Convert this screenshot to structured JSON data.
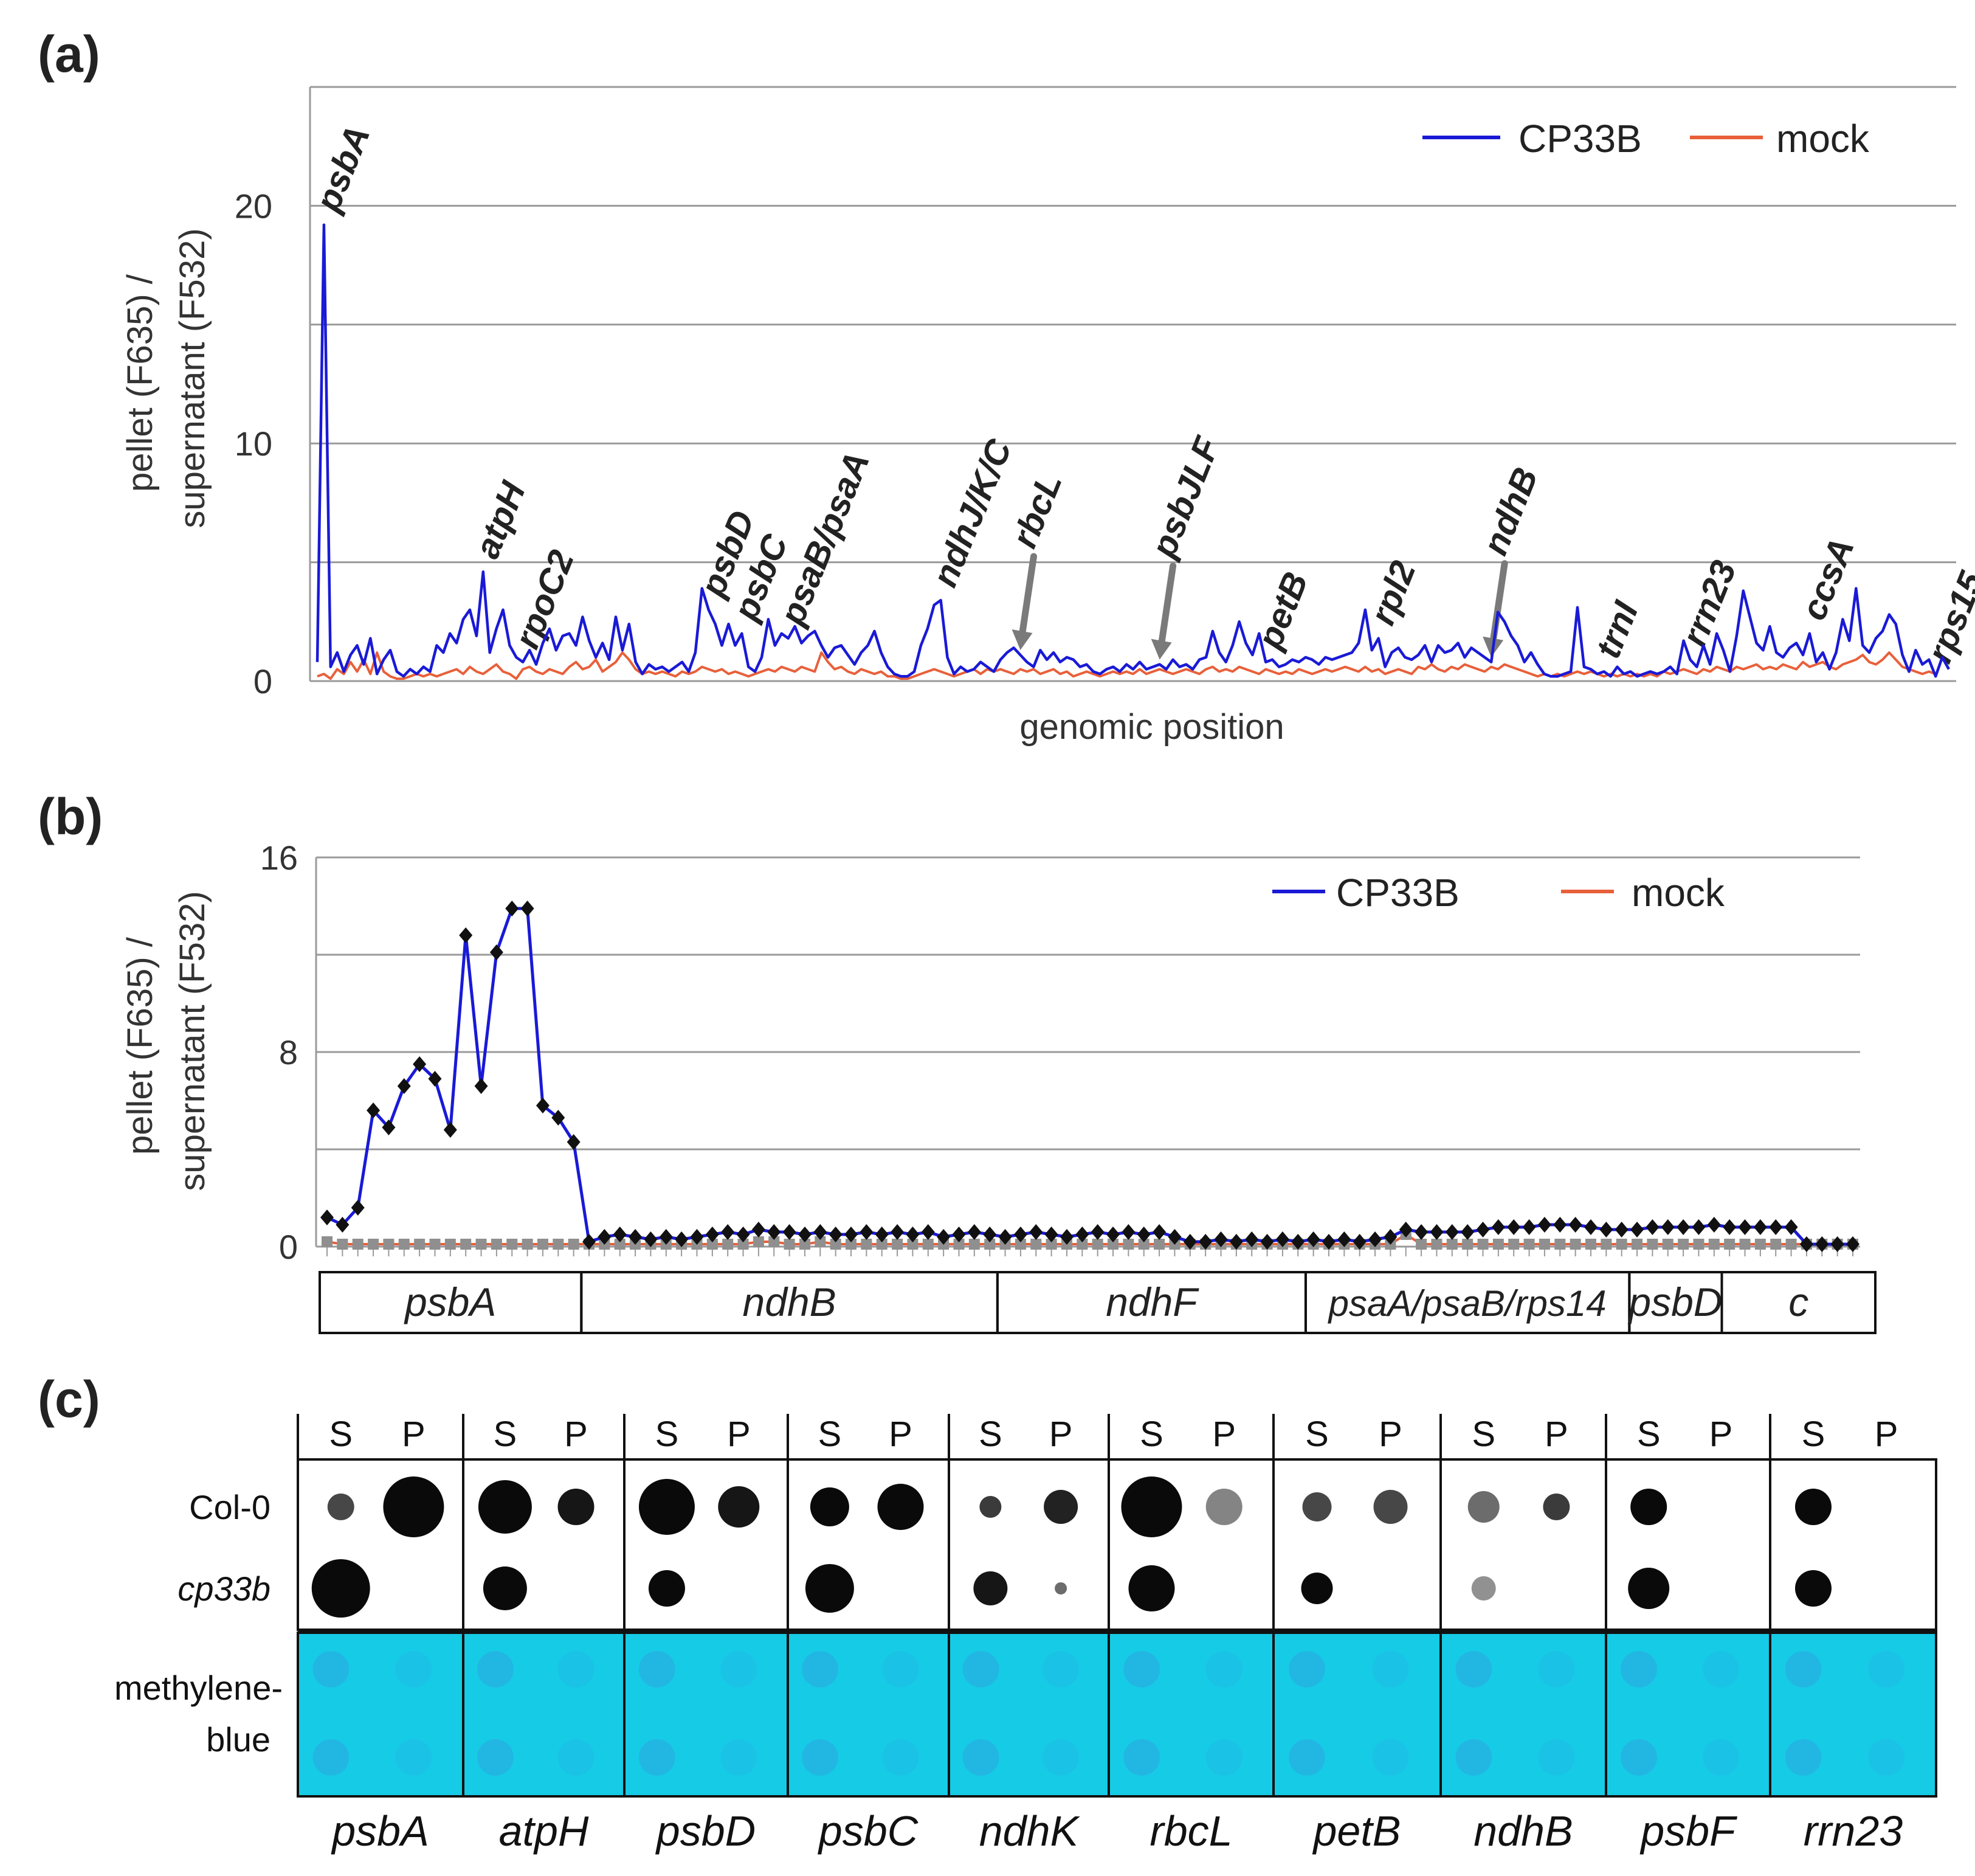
{
  "chart_data": [
    {
      "panel": "(a)",
      "type": "line",
      "xlabel": "genomic position",
      "ylabel": "pellet (F635) / supernatant (F532)",
      "ylim": [
        0,
        25
      ],
      "yticks": [
        0,
        10,
        20
      ],
      "grid": true,
      "legend": "top-right",
      "series": [
        {
          "name": "CP33B",
          "color": "#1a1ad6",
          "values": [
            0.8,
            19.2,
            0.6,
            1.2,
            0.4,
            1.1,
            1.5,
            0.7,
            1.8,
            0.3,
            0.9,
            1.3,
            0.4,
            0.2,
            0.5,
            0.3,
            0.6,
            0.4,
            1.5,
            1.2,
            2.0,
            1.6,
            2.6,
            3.0,
            1.9,
            4.6,
            1.2,
            2.2,
            3.0,
            1.5,
            1.0,
            0.8,
            1.3,
            0.7,
            1.6,
            2.2,
            1.3,
            1.9,
            2.0,
            1.5,
            2.7,
            1.7,
            1.0,
            1.6,
            0.9,
            2.7,
            1.3,
            2.4,
            0.8,
            0.3,
            0.7,
            0.5,
            0.6,
            0.4,
            0.6,
            0.8,
            0.4,
            1.2,
            3.9,
            3.0,
            2.4,
            1.5,
            2.4,
            1.5,
            2.0,
            0.6,
            0.4,
            1.0,
            2.6,
            1.5,
            2.0,
            1.8,
            2.3,
            1.6,
            1.9,
            2.1,
            1.5,
            1.0,
            1.4,
            1.5,
            1.1,
            0.7,
            1.2,
            1.5,
            2.1,
            1.2,
            0.6,
            0.3,
            0.2,
            0.2,
            0.4,
            1.5,
            2.2,
            3.2,
            3.4,
            1.0,
            0.3,
            0.6,
            0.4,
            0.5,
            0.8,
            0.6,
            0.4,
            0.9,
            1.2,
            1.4,
            1.1,
            0.8,
            0.6,
            1.3,
            0.9,
            1.2,
            0.8,
            1.0,
            0.9,
            0.6,
            0.7,
            0.4,
            0.3,
            0.5,
            0.6,
            0.4,
            0.7,
            0.5,
            0.8,
            0.5,
            0.6,
            0.7,
            0.5,
            0.9,
            0.6,
            0.7,
            0.5,
            0.9,
            1.0,
            2.1,
            1.2,
            0.8,
            1.5,
            2.5,
            1.6,
            1.1,
            2.0,
            0.8,
            0.9,
            0.6,
            0.7,
            0.9,
            0.8,
            1.0,
            0.9,
            0.7,
            1.0,
            0.9,
            1.0,
            1.1,
            1.2,
            1.6,
            3.0,
            1.3,
            1.8,
            0.6,
            1.2,
            1.4,
            1.0,
            0.9,
            1.1,
            1.5,
            0.8,
            1.5,
            1.2,
            1.3,
            1.6,
            1.0,
            1.4,
            1.2,
            1.0,
            0.8,
            2.9,
            2.5,
            1.9,
            1.5,
            0.8,
            1.2,
            0.7,
            0.3,
            0.2,
            0.2,
            0.3,
            0.4,
            3.1,
            0.6,
            0.5,
            0.3,
            0.4,
            0.2,
            0.6,
            0.3,
            0.4,
            0.2,
            0.3,
            0.4,
            0.3,
            0.4,
            0.6,
            0.3,
            1.7,
            0.9,
            0.6,
            1.5,
            0.7,
            2.0,
            1.3,
            0.4,
            1.9,
            3.8,
            2.7,
            1.6,
            1.3,
            2.3,
            1.2,
            1.0,
            1.4,
            1.6,
            1.1,
            2.0,
            0.8,
            1.2,
            0.5,
            1.2,
            2.6,
            1.7,
            3.9,
            1.5,
            1.2,
            1.8,
            2.1,
            2.8,
            2.4,
            1.1,
            0.4,
            1.3,
            0.7,
            0.9,
            0.2,
            1.0,
            0.5
          ]
        },
        {
          "name": "mock",
          "color": "#e8603a",
          "values": [
            0.2,
            0.3,
            0.1,
            0.5,
            0.3,
            0.8,
            0.4,
            0.9,
            0.3,
            1.2,
            0.4,
            0.2,
            0.1,
            0.1,
            0.2,
            0.3,
            0.2,
            0.3,
            0.2,
            0.3,
            0.4,
            0.5,
            0.3,
            0.6,
            0.4,
            0.3,
            0.5,
            0.7,
            0.4,
            0.3,
            0.1,
            0.5,
            0.6,
            0.4,
            0.3,
            0.5,
            0.4,
            0.3,
            0.6,
            0.8,
            0.5,
            0.6,
            0.9,
            0.4,
            0.6,
            0.8,
            1.2,
            0.9,
            0.5,
            0.3,
            0.4,
            0.3,
            0.4,
            0.3,
            0.2,
            0.4,
            0.3,
            0.4,
            0.6,
            0.5,
            0.4,
            0.5,
            0.3,
            0.4,
            0.3,
            0.2,
            0.3,
            0.4,
            0.5,
            0.4,
            0.6,
            0.5,
            0.4,
            0.6,
            0.5,
            0.4,
            1.2,
            0.8,
            0.5,
            0.6,
            0.4,
            0.3,
            0.5,
            0.4,
            0.3,
            0.4,
            0.2,
            0.2,
            0.1,
            0.1,
            0.2,
            0.3,
            0.4,
            0.5,
            0.4,
            0.3,
            0.2,
            0.3,
            0.4,
            0.5,
            0.3,
            0.5,
            0.4,
            0.5,
            0.4,
            0.3,
            0.5,
            0.4,
            0.5,
            0.3,
            0.4,
            0.5,
            0.3,
            0.4,
            0.2,
            0.3,
            0.4,
            0.3,
            0.2,
            0.3,
            0.4,
            0.3,
            0.4,
            0.3,
            0.5,
            0.3,
            0.4,
            0.5,
            0.4,
            0.3,
            0.4,
            0.5,
            0.4,
            0.3,
            0.5,
            0.6,
            0.4,
            0.5,
            0.4,
            0.6,
            0.5,
            0.4,
            0.3,
            0.5,
            0.4,
            0.3,
            0.4,
            0.3,
            0.5,
            0.4,
            0.3,
            0.4,
            0.5,
            0.4,
            0.5,
            0.6,
            0.5,
            0.4,
            0.6,
            0.4,
            0.5,
            0.3,
            0.4,
            0.5,
            0.4,
            0.3,
            0.6,
            0.5,
            0.7,
            0.5,
            0.4,
            0.6,
            0.5,
            0.7,
            0.6,
            0.5,
            0.4,
            0.6,
            0.5,
            0.7,
            0.6,
            0.5,
            0.4,
            0.3,
            0.2,
            0.3,
            0.2,
            0.3,
            0.2,
            0.3,
            0.4,
            0.3,
            0.4,
            0.3,
            0.2,
            0.3,
            0.2,
            0.3,
            0.2,
            0.3,
            0.2,
            0.3,
            0.2,
            0.4,
            0.3,
            0.4,
            0.5,
            0.4,
            0.3,
            0.5,
            0.4,
            0.6,
            0.5,
            0.4,
            0.6,
            0.5,
            0.6,
            0.7,
            0.5,
            0.6,
            0.5,
            0.7,
            0.6,
            0.5,
            0.8,
            0.6,
            0.7,
            0.8,
            0.6,
            0.5,
            0.7,
            0.8,
            0.9,
            1.1,
            0.8,
            0.7,
            0.9,
            1.2,
            0.9,
            0.6,
            0.5,
            0.4,
            0.3,
            0.4,
            0.3
          ]
        }
      ],
      "annotations": [
        {
          "label": "psbA",
          "at": 1,
          "arrow": false
        },
        {
          "label": "atpH",
          "at": 25,
          "arrow": false
        },
        {
          "label": "rpoC2",
          "at": 31,
          "arrow": false
        },
        {
          "label": "psbD",
          "at": 59,
          "arrow": false
        },
        {
          "label": "psbC",
          "at": 64,
          "arrow": false
        },
        {
          "label": "psaB/psaA",
          "at": 71,
          "arrow": false
        },
        {
          "label": "ndhJ/K/C",
          "at": 94,
          "arrow": false
        },
        {
          "label": "rbcL",
          "at": 106,
          "arrow": true
        },
        {
          "label": "psbJLF",
          "at": 127,
          "arrow": true
        },
        {
          "label": "petB",
          "at": 143,
          "arrow": false
        },
        {
          "label": "rpl2",
          "at": 160,
          "arrow": false
        },
        {
          "label": "ndhB",
          "at": 177,
          "arrow": true
        },
        {
          "label": "trnI",
          "at": 194,
          "arrow": false
        },
        {
          "label": "rrn23",
          "at": 207,
          "arrow": false
        },
        {
          "label": "ccsA",
          "at": 225,
          "arrow": false
        },
        {
          "label": "rps15",
          "at": 244,
          "arrow": false
        }
      ]
    },
    {
      "panel": "(b)",
      "type": "line",
      "xlabel": "",
      "ylabel": "pellet (F635) / supernatant (F532)",
      "ylim": [
        0,
        16
      ],
      "yticks": [
        0,
        8,
        16
      ],
      "grid": true,
      "legend": "top-right",
      "series": [
        {
          "name": "CP33B",
          "color": "#1a1ad6",
          "values": [
            1.2,
            0.9,
            1.6,
            5.6,
            4.9,
            6.6,
            7.5,
            6.9,
            4.8,
            12.8,
            6.6,
            12.1,
            13.9,
            13.9,
            5.8,
            5.3,
            4.3,
            0.2,
            0.4,
            0.5,
            0.4,
            0.3,
            0.4,
            0.3,
            0.4,
            0.5,
            0.6,
            0.5,
            0.7,
            0.6,
            0.6,
            0.5,
            0.6,
            0.5,
            0.5,
            0.6,
            0.5,
            0.6,
            0.5,
            0.6,
            0.4,
            0.5,
            0.6,
            0.5,
            0.4,
            0.5,
            0.6,
            0.5,
            0.4,
            0.5,
            0.6,
            0.5,
            0.6,
            0.5,
            0.6,
            0.4,
            0.2,
            0.2,
            0.3,
            0.2,
            0.3,
            0.2,
            0.3,
            0.2,
            0.3,
            0.2,
            0.3,
            0.2,
            0.3,
            0.4,
            0.7,
            0.6,
            0.6,
            0.6,
            0.6,
            0.7,
            0.8,
            0.8,
            0.8,
            0.9,
            0.9,
            0.9,
            0.8,
            0.7,
            0.7,
            0.7,
            0.8,
            0.8,
            0.8,
            0.8,
            0.9,
            0.8,
            0.8,
            0.8,
            0.8,
            0.8,
            0.1,
            0.1,
            0.1,
            0.1
          ],
          "markers": "diamond"
        },
        {
          "name": "mock",
          "color": "#e8603a",
          "values": [
            0.2,
            0.1,
            0.1,
            0.1,
            0.1,
            0.1,
            0.1,
            0.1,
            0.1,
            0.1,
            0.1,
            0.1,
            0.1,
            0.1,
            0.1,
            0.1,
            0.1,
            0.1,
            0.1,
            0.1,
            0.1,
            0.1,
            0.1,
            0.1,
            0.1,
            0.1,
            0.1,
            0.1,
            0.2,
            0.2,
            0.1,
            0.1,
            0.2,
            0.1,
            0.1,
            0.1,
            0.1,
            0.1,
            0.1,
            0.1,
            0.1,
            0.1,
            0.1,
            0.1,
            0.1,
            0.1,
            0.1,
            0.1,
            0.1,
            0.1,
            0.1,
            0.1,
            0.1,
            0.1,
            0.1,
            0.1,
            0.1,
            0.1,
            0.1,
            0.1,
            0.1,
            0.1,
            0.1,
            0.1,
            0.1,
            0.1,
            0.1,
            0.1,
            0.1,
            0.1,
            0.5,
            0.1,
            0.1,
            0.1,
            0.1,
            0.1,
            0.1,
            0.1,
            0.1,
            0.1,
            0.1,
            0.1,
            0.1,
            0.1,
            0.1,
            0.1,
            0.1,
            0.1,
            0.1,
            0.1,
            0.1,
            0.1,
            0.1,
            0.1,
            0.1,
            0.1,
            0.1,
            0.1,
            0.1,
            0.1
          ],
          "markers": "square"
        }
      ],
      "regions": [
        {
          "label": "psbA",
          "from": 0,
          "to": 17
        },
        {
          "label": "ndhB",
          "from": 17,
          "to": 44
        },
        {
          "label": "ndhF",
          "from": 44,
          "to": 64
        },
        {
          "label": "psaA/psaB/rps14",
          "from": 64,
          "to": 85
        },
        {
          "label": "psbD",
          "from": 85,
          "to": 91
        },
        {
          "label": "c",
          "from": 91,
          "to": 94.5
        }
      ]
    }
  ],
  "panel_c": {
    "label": "(c)",
    "col_heads": [
      "S",
      "P"
    ],
    "rows": [
      "Col-0",
      "cp33b"
    ],
    "stain_label_line1": "methylene-",
    "stain_label_line2": "blue",
    "genes": [
      "psbA",
      "atpH",
      "psbD",
      "psbC",
      "ndhK",
      "rbcL",
      "petB",
      "ndhB",
      "psbF",
      "rrn23"
    ],
    "colors": {
      "stain": "#16cbe6",
      "stain_spot": "#2da7e0",
      "dot": "#0a0a0a"
    }
  }
}
